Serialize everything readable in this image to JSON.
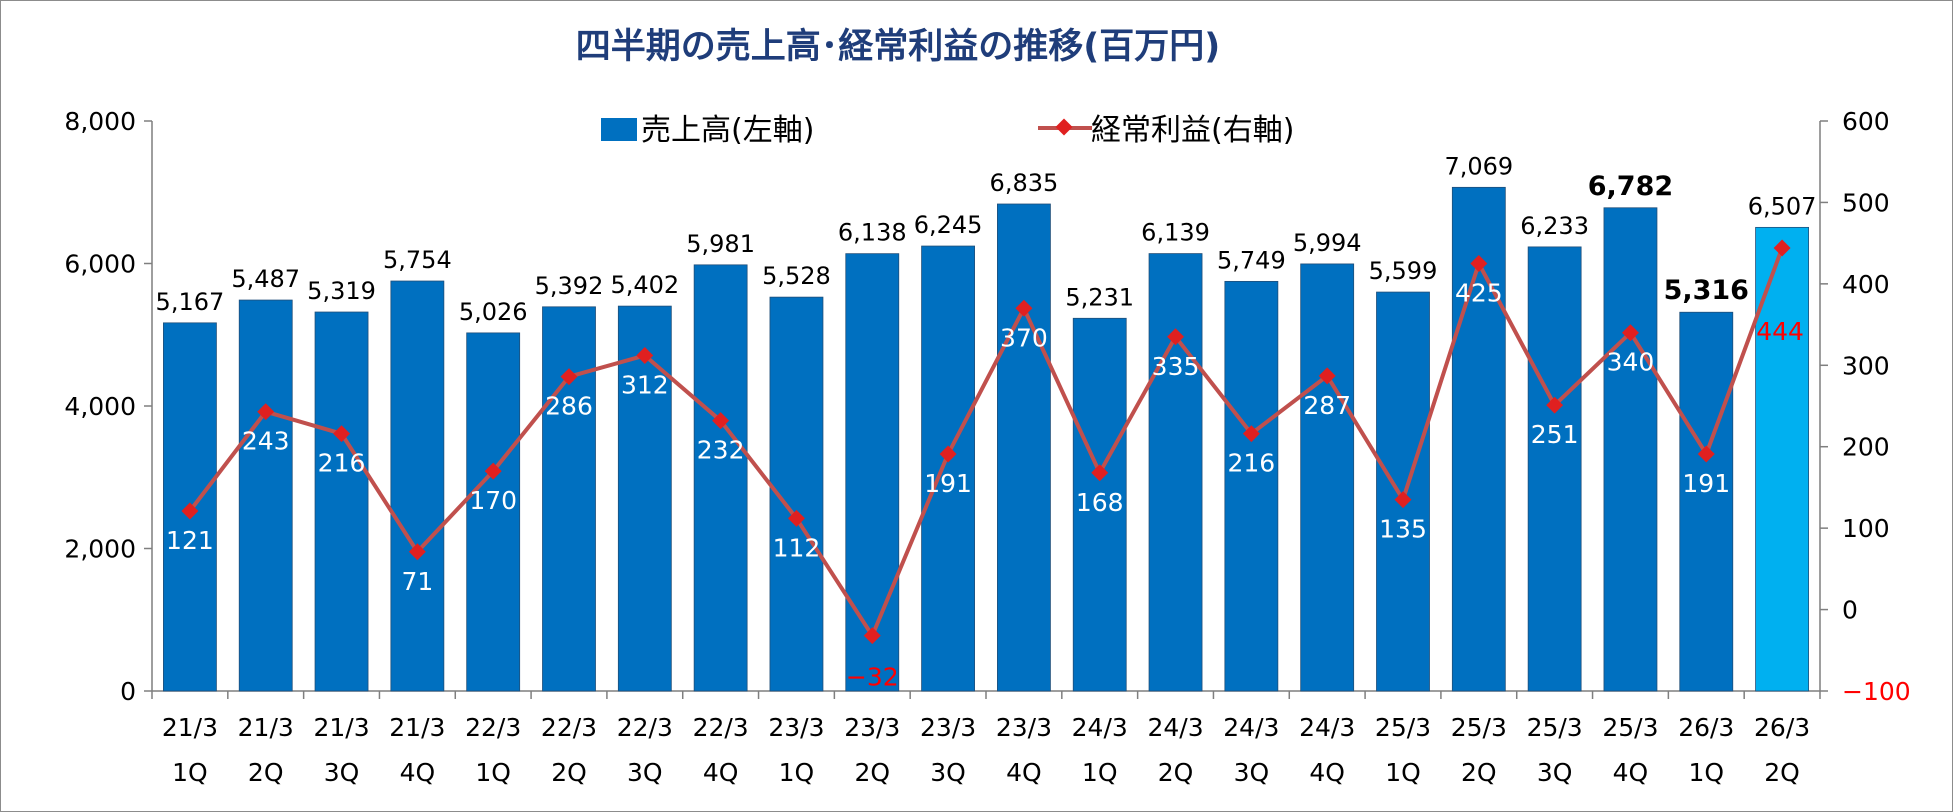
{
  "chart_data": {
    "type": "bar",
    "title": "四半期の売上高･経常利益の推移(百万円)",
    "categories": [
      [
        "21/3",
        "1Q"
      ],
      [
        "21/3",
        "2Q"
      ],
      [
        "21/3",
        "3Q"
      ],
      [
        "21/3",
        "4Q"
      ],
      [
        "22/3",
        "1Q"
      ],
      [
        "22/3",
        "2Q"
      ],
      [
        "22/3",
        "3Q"
      ],
      [
        "22/3",
        "4Q"
      ],
      [
        "23/3",
        "1Q"
      ],
      [
        "23/3",
        "2Q"
      ],
      [
        "23/3",
        "3Q"
      ],
      [
        "23/3",
        "4Q"
      ],
      [
        "24/3",
        "1Q"
      ],
      [
        "24/3",
        "2Q"
      ],
      [
        "24/3",
        "3Q"
      ],
      [
        "24/3",
        "4Q"
      ],
      [
        "25/3",
        "1Q"
      ],
      [
        "25/3",
        "2Q"
      ],
      [
        "25/3",
        "3Q"
      ],
      [
        "25/3",
        "4Q"
      ],
      [
        "26/3",
        "1Q"
      ],
      [
        "26/3",
        "2Q"
      ]
    ],
    "series": [
      {
        "name": "売上高(左軸)",
        "type": "bar",
        "axis": "left",
        "color": "#0070c0",
        "highlight_last_color": "#00b0f0",
        "values": [
          5167,
          5487,
          5319,
          5754,
          5026,
          5392,
          5402,
          5981,
          5528,
          6138,
          6245,
          6835,
          5231,
          6139,
          5749,
          5994,
          5599,
          7069,
          6233,
          6782,
          5316,
          6507
        ],
        "labels": [
          "5,167",
          "5,487",
          "5,319",
          "5,754",
          "5,026",
          "5,392",
          "5,402",
          "5,981",
          "5,528",
          "6,138",
          "6,245",
          "6,835",
          "5,231",
          "6,139",
          "5,749",
          "5,994",
          "5,599",
          "7,069",
          "6,233",
          "6,782",
          "5,316",
          "6,507"
        ],
        "bold_indices": [
          19,
          20
        ]
      },
      {
        "name": "経常利益(右軸)",
        "type": "line",
        "axis": "right",
        "color": "#c0504d",
        "marker_color": "#e02020",
        "values": [
          121,
          243,
          216,
          71,
          170,
          286,
          312,
          232,
          112,
          -32,
          191,
          370,
          168,
          335,
          216,
          287,
          135,
          425,
          251,
          340,
          191,
          444
        ],
        "labels": [
          "121",
          "243",
          "216",
          "71",
          "170",
          "286",
          "312",
          "232",
          "112",
          "−32",
          "191",
          "370",
          "168",
          "335",
          "216",
          "287",
          "135",
          "425",
          "251",
          "340",
          "191",
          "444"
        ],
        "red_label_indices": [
          9,
          21
        ]
      }
    ],
    "y_left": {
      "min": 0,
      "max": 8000,
      "ticks": [
        0,
        2000,
        4000,
        6000,
        8000
      ],
      "tick_labels": [
        "0",
        "2,000",
        "4,000",
        "6,000",
        "8,000"
      ]
    },
    "y_right": {
      "min": -100,
      "max": 600,
      "ticks": [
        -100,
        0,
        100,
        200,
        300,
        400,
        500,
        600
      ],
      "tick_labels": [
        "−100",
        "0",
        "100",
        "200",
        "300",
        "400",
        "500",
        "600"
      ]
    },
    "legend_position": "top-center",
    "grid": false
  }
}
